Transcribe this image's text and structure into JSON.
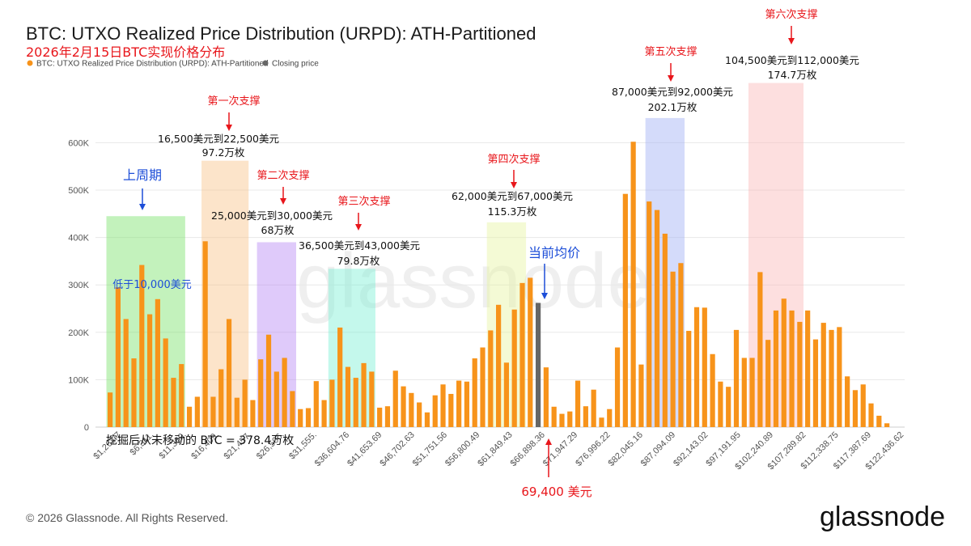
{
  "chart_data": {
    "type": "bar",
    "title": "BTC: UTXO Realized Price Distribution (URPD): ATH-Partitioned",
    "subtitle": "2026年2月15日BTC实现价格分布",
    "legend": [
      {
        "name": "BTC: UTXO Realized Price Distribution (URPD): ATH-Partitioned",
        "color": "#f7931a"
      },
      {
        "name": "Closing price",
        "color": "#666666"
      }
    ],
    "ylim": [
      0,
      650000
    ],
    "yticks": [
      0,
      100000,
      200000,
      300000,
      400000,
      500000,
      600000
    ],
    "ytick_labels": [
      "0",
      "100K",
      "200K",
      "300K",
      "400K",
      "500K",
      "600K"
    ],
    "xtick_labels": [
      "$1,262.7",
      "$6,311.",
      "$11,360.",
      "$16,409.",
      "$21,457.",
      "$26,506.",
      "$31,555.",
      "$36,604.76",
      "$41,653.69",
      "$46,702.63",
      "$51,751.56",
      "$56,800.49",
      "$61,849.43",
      "$66,898.36",
      "$71,947.29",
      "$76,996.22",
      "$82,045.16",
      "$87,094.09",
      "$92,143.02",
      "$97,191.95",
      "$102,240.89",
      "$107,289.82",
      "$112,338.75",
      "$117,387.69",
      "$122,436.62"
    ],
    "values": [
      73000,
      295000,
      228000,
      145000,
      342000,
      238000,
      270000,
      187000,
      104000,
      133000,
      43000,
      64000,
      392000,
      64000,
      122000,
      228000,
      62000,
      100000,
      57000,
      143000,
      195000,
      117000,
      146000,
      76000,
      38000,
      40000,
      97000,
      57000,
      100000,
      210000,
      127000,
      104000,
      135000,
      117000,
      41000,
      44000,
      119000,
      86000,
      72000,
      52000,
      31000,
      67000,
      90000,
      70000,
      98000,
      96000,
      145000,
      168000,
      204000,
      258000,
      136000,
      248000,
      304000,
      315000,
      262000,
      126000,
      43000,
      28000,
      33000,
      98000,
      44000,
      79000,
      20000,
      38000,
      168000,
      492000,
      602000,
      132000,
      476000,
      458000,
      408000,
      328000,
      346000,
      203000,
      253000,
      252000,
      154000,
      96000,
      85000,
      205000,
      146000,
      146000,
      327000,
      184000,
      246000,
      271000,
      246000,
      222000,
      246000,
      185000,
      220000,
      205000,
      211000,
      107000,
      78000,
      90000,
      50000,
      24000,
      8000
    ],
    "closing_price_index": 54,
    "zones": [
      {
        "label": "上周期",
        "start": 0,
        "end": 9,
        "top": 445000,
        "color": "#7be36a"
      },
      {
        "label": "第一次支撑",
        "start": 12,
        "end": 17,
        "top": 562000,
        "color": "#f9c48a"
      },
      {
        "label": "第二次支撑",
        "start": 19,
        "end": 23,
        "top": 390000,
        "color": "#b98af5"
      },
      {
        "label": "第三次支撑",
        "start": 28,
        "end": 33,
        "top": 334000,
        "color": "#7df0d5"
      },
      {
        "label": "第四次支撑",
        "start": 48,
        "end": 52,
        "top": 432000,
        "color": "#e6f5a2"
      },
      {
        "label": "第五次支撑",
        "start": 68,
        "end": 72,
        "top": 652000,
        "color": "#9fb0f5"
      },
      {
        "label": "第六次支撑",
        "start": 81,
        "end": 87,
        "top": 726000,
        "color": "#fbb8b8"
      }
    ]
  },
  "annotations": {
    "z0": {
      "title": "上周期",
      "inside": "低于10,000美元"
    },
    "z1": {
      "title": "第一次支撑",
      "range": "16,500美元到22,500美元",
      "amount": "97.2万枚"
    },
    "z2": {
      "title": "第二次支撑",
      "range": "25,000美元到30,000美元",
      "amount": "68万枚"
    },
    "z3": {
      "title": "第三次支撑",
      "range": "36,500美元到43,000美元",
      "amount": "79.8万枚"
    },
    "z4": {
      "title": "第四次支撑",
      "range": "62,000美元到67,000美元",
      "amount": "115.3万枚"
    },
    "z5": {
      "title": "第五次支撑",
      "range": "87,000美元到92,000美元",
      "amount": "202.1万枚"
    },
    "z6": {
      "title": "第六次支撑",
      "range": "104,500美元到112,000美元",
      "amount": "174.7万枚"
    },
    "current": "当前均价",
    "closing_price": "69,400 美元",
    "mined": "挖掘后从未移动的 BTC = 378.4万枚"
  },
  "footer": {
    "copyright": "© 2026 Glassnode. All Rights Reserved.",
    "logo": "glassnode",
    "watermark": "glassnode"
  },
  "colors": {
    "bar": "#f7931a",
    "closing": "#666666",
    "grid": "#e8e8e8",
    "red": "#e8161b",
    "blue": "#1d4ed8"
  }
}
